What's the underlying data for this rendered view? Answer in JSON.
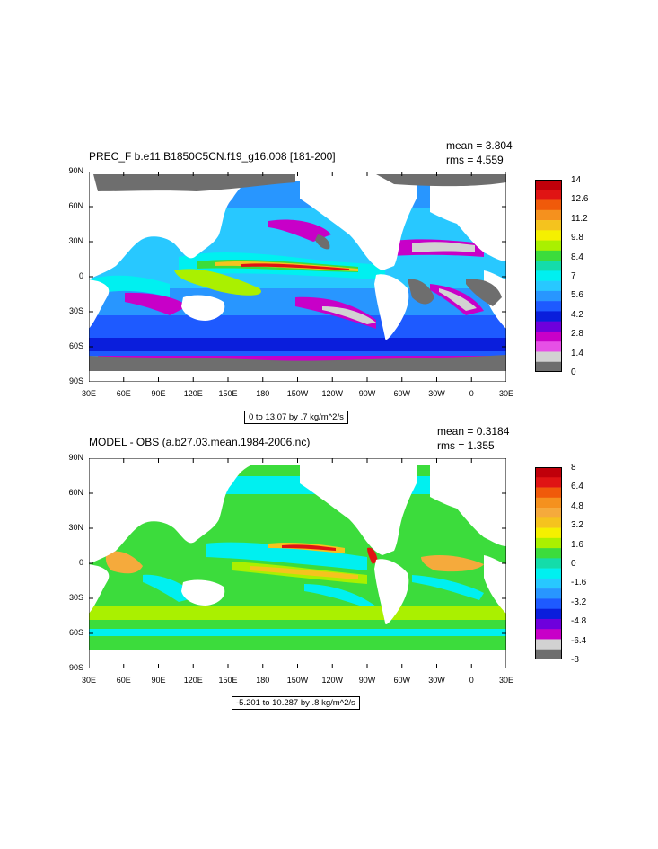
{
  "panels": [
    {
      "title": "PREC_F b.e11.B1850C5CN.f19_g16.008 [181-200]",
      "mean": "mean = 3.804",
      "rms": "rms = 4.559",
      "range_note": "0 to 13.07 by .7 kg/m^2/s",
      "colorbar": {
        "labels": [
          "14",
          "12.6",
          "11.2",
          "9.8",
          "8.4",
          "7",
          "5.6",
          "4.2",
          "2.8",
          "1.4",
          "0"
        ],
        "colors": [
          "#c0000a",
          "#e01414",
          "#f05a0a",
          "#f5911e",
          "#f5c31e",
          "#f5f000",
          "#aaf000",
          "#3cdc3c",
          "#14dcaa",
          "#00f0f0",
          "#28c8ff",
          "#2896ff",
          "#1e5aff",
          "#0a1edc",
          "#6e00dc",
          "#c800c8",
          "#e650e6",
          "#d2d2d2",
          "#6e6e6e"
        ]
      }
    },
    {
      "title": "MODEL - OBS (a.b27.03.mean.1984-2006.nc)",
      "mean": "mean = 0.3184",
      "rms": "rms = 1.355",
      "range_note": "-5.201 to 10.287 by .8 kg/m^2/s",
      "colorbar": {
        "labels": [
          "8",
          "6.4",
          "4.8",
          "3.2",
          "1.6",
          "0",
          "-1.6",
          "-3.2",
          "-4.8",
          "-6.4",
          "-8"
        ],
        "colors": [
          "#c0000a",
          "#e01414",
          "#f05a0a",
          "#f5911e",
          "#f5aa3c",
          "#f5c31e",
          "#f5f000",
          "#aaf000",
          "#3cdc3c",
          "#14dcaa",
          "#00f0f0",
          "#28c8ff",
          "#2896ff",
          "#1e5aff",
          "#0a1edc",
          "#6e00dc",
          "#c800c8",
          "#d2d2d2",
          "#6e6e6e"
        ]
      }
    }
  ],
  "axes": {
    "lat_labels": [
      "90N",
      "60N",
      "30N",
      "0",
      "30S",
      "60S",
      "90S"
    ],
    "lon_labels": [
      "30E",
      "60E",
      "90E",
      "120E",
      "150E",
      "180",
      "150W",
      "120W",
      "90W",
      "60W",
      "30W",
      "0",
      "30E"
    ]
  }
}
